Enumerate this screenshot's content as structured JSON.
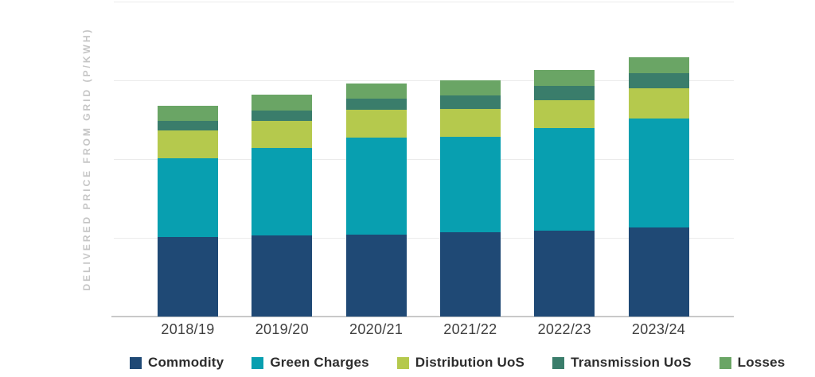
{
  "chart_data": {
    "type": "bar",
    "stacked": true,
    "title": "",
    "xlabel": "",
    "ylabel": "DELIVERED PRICE FROM GRID (P/KWH)",
    "categories": [
      "2018/19",
      "2019/20",
      "2020/21",
      "2021/22",
      "2022/23",
      "2023/24"
    ],
    "series": [
      {
        "name": "Commodity",
        "color": "#1f4975",
        "values": [
          1.01,
          1.03,
          1.04,
          1.07,
          1.09,
          1.13
        ]
      },
      {
        "name": "Green Charges",
        "color": "#089fb0",
        "values": [
          1.0,
          1.11,
          1.23,
          1.21,
          1.3,
          1.39
        ]
      },
      {
        "name": "Distribution UoS",
        "color": "#b5c94d",
        "values": [
          0.35,
          0.34,
          0.36,
          0.36,
          0.36,
          0.38
        ]
      },
      {
        "name": "Transmission UoS",
        "color": "#3a7d6b",
        "values": [
          0.13,
          0.14,
          0.14,
          0.17,
          0.18,
          0.19
        ]
      },
      {
        "name": "Losses",
        "color": "#6aa565",
        "values": [
          0.19,
          0.2,
          0.19,
          0.19,
          0.2,
          0.2
        ]
      }
    ],
    "stack_totals_estimated": [
      2.68,
      2.82,
      2.96,
      2.99,
      3.13,
      3.29
    ],
    "y_axis": {
      "min": 0,
      "max": 4,
      "gridline_interval": 1,
      "tick_labels_visible": false,
      "note": "y axis has gridlines only, no numeric tick labels; values are in gridline units estimated from bar heights"
    },
    "grid": true,
    "legend_position": "bottom"
  },
  "colors": {
    "background": "#ffffff",
    "gridline": "#ebebeb",
    "axis_line": "#c9c9c9",
    "y_axis_label_text": "#c5c5c5",
    "x_tick_text": "#3f3f3f",
    "legend_text": "#2d2d2d"
  }
}
